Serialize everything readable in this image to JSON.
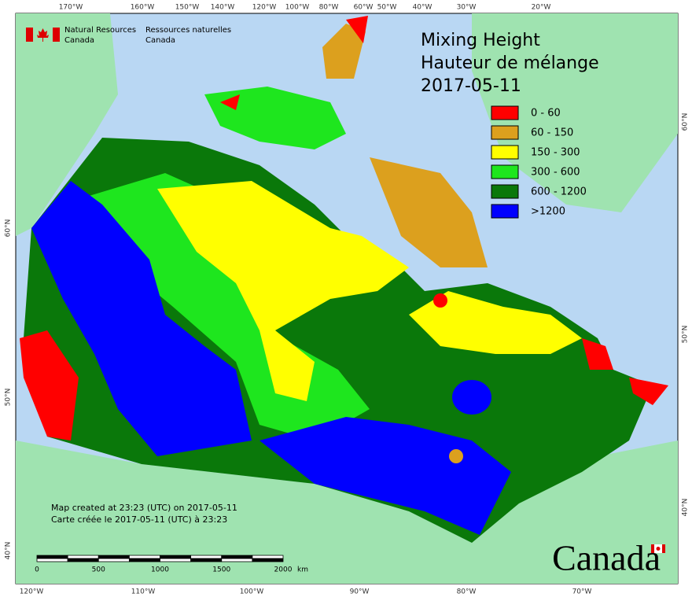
{
  "header": {
    "org_en": "Natural Resources",
    "org_en2": "Canada",
    "org_fr": "Ressources naturelles",
    "org_fr2": "Canada"
  },
  "title": [
    "Mixing Height",
    "Hauteur de mélange",
    "2017-05-11"
  ],
  "legend": [
    {
      "label": "0 - 60",
      "color": "#ff0000"
    },
    {
      "label": "60 - 150",
      "color": "#dca01e"
    },
    {
      "label": "150 - 300",
      "color": "#ffff00"
    },
    {
      "label": "300 - 600",
      "color": "#1ee61e"
    },
    {
      "label": "600 - 1200",
      "color": "#0a780a"
    },
    {
      "label": ">1200",
      "color": "#0000ff"
    }
  ],
  "top_labels": [
    "170°W",
    "160°W",
    "150°W",
    "140°W",
    "120°W",
    "100°W",
    "80°W",
    "60°W",
    "50°W",
    "40°W",
    "30°W",
    "20°W"
  ],
  "bottom_labels": [
    "120°W",
    "110°W",
    "100°W",
    "90°W",
    "80°W",
    "70°W"
  ],
  "left_labels": [
    "60°N",
    "50°N",
    "40°N"
  ],
  "right_labels": [
    "60°N",
    "50°N",
    "40°N"
  ],
  "footer": [
    "Map created at 23:23 (UTC) on 2017-05-11",
    "Carte créée le 2017-05-11 (UTC) à 23:23"
  ],
  "scale": {
    "ticks": [
      "0",
      "500",
      "1000",
      "1500",
      "2000"
    ],
    "unit": "km"
  },
  "wordmark": "Canada"
}
